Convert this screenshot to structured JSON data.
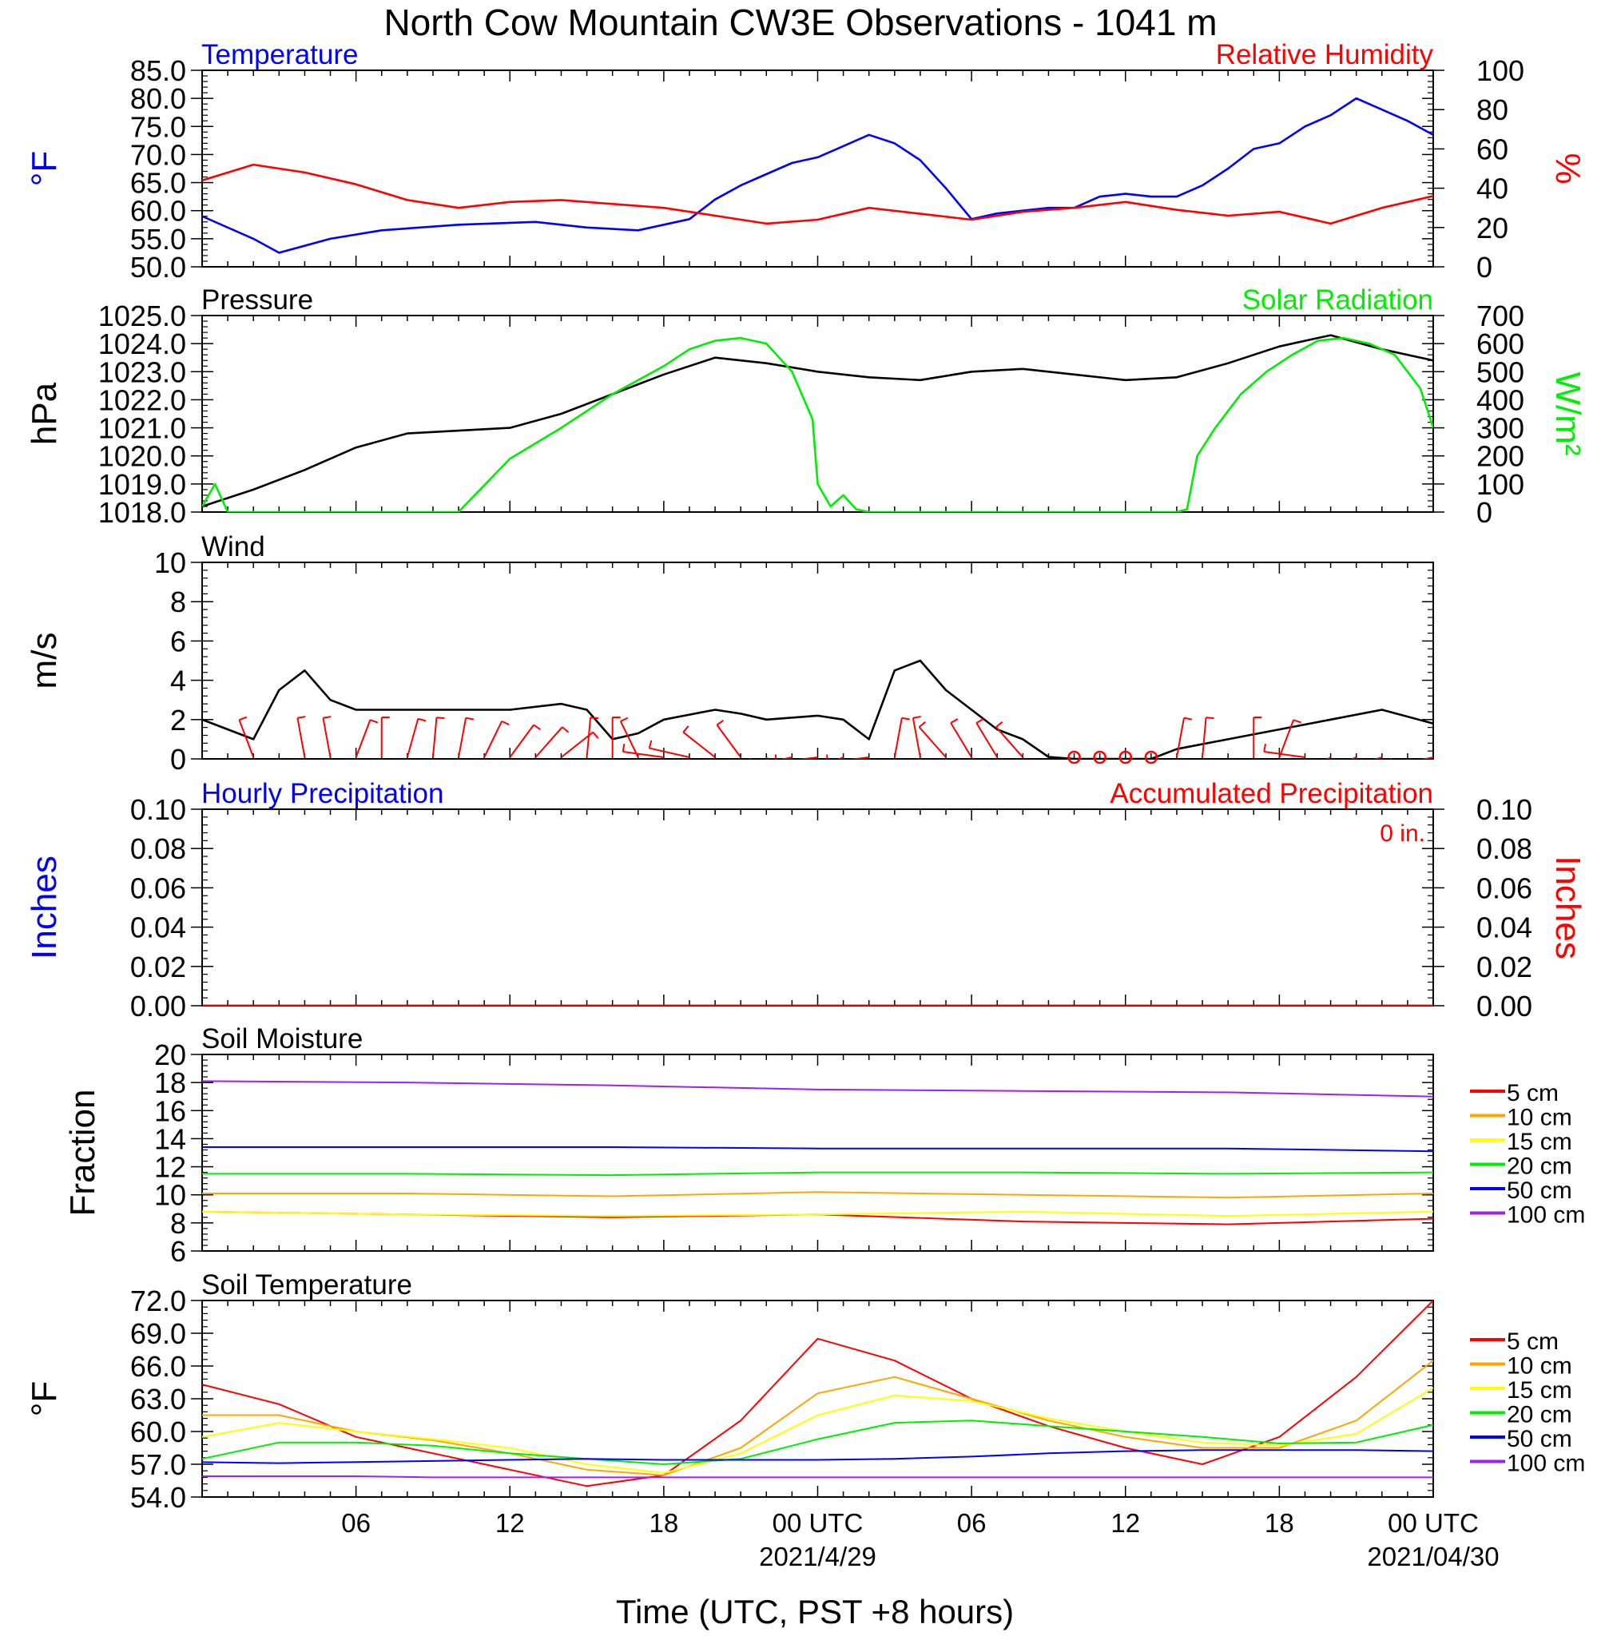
{
  "title": "North Cow Mountain CW3E Observations - 1041 m",
  "xaxis": {
    "label": "Time (UTC, PST +8 hours)",
    "range_hours": [
      -24,
      24
    ],
    "ticks": [
      {
        "h": -18,
        "label": "06"
      },
      {
        "h": -12,
        "label": "12"
      },
      {
        "h": -6,
        "label": "18"
      },
      {
        "h": 0,
        "label": "00 UTC"
      },
      {
        "h": 6,
        "label": "06"
      },
      {
        "h": 12,
        "label": "12"
      },
      {
        "h": 18,
        "label": "18"
      },
      {
        "h": 24,
        "label": "00 UTC"
      }
    ],
    "date_labels": [
      {
        "h": 0,
        "label": "2021/4/29"
      },
      {
        "h": 24,
        "label": "2021/04/30"
      }
    ]
  },
  "colors": {
    "temperature": "#0000ff",
    "humidity": "#ff0000",
    "pressure": "#000000",
    "solar": "#00ee00",
    "wind": "#000000",
    "barbs": "#ff0000",
    "hourly_precip": "#0000ff",
    "accum_precip": "#ff0000"
  },
  "depth_legend": {
    "labels": [
      "5 cm",
      "10 cm",
      "15 cm",
      "20 cm",
      "50 cm",
      "100 cm"
    ],
    "colors": [
      "#ff0000",
      "#ffa500",
      "#ffff00",
      "#00ee00",
      "#0000ff",
      "#a020f0"
    ]
  },
  "chart_data": [
    {
      "type": "line",
      "panel": "temperature-humidity",
      "left_title": "Temperature",
      "right_title": "Relative Humidity",
      "ylabel_left": "°F",
      "ylabel_right": "%",
      "yticks_left": [
        "50.0",
        "55.0",
        "60.0",
        "65.0",
        "70.0",
        "75.0",
        "80.0",
        "85.0"
      ],
      "yticks_right": [
        "0",
        "20",
        "40",
        "60",
        "80",
        "100"
      ],
      "ylim_left": [
        50,
        85
      ],
      "ylim_right": [
        0,
        100
      ],
      "series": [
        {
          "axis": "left",
          "x": [
            -24,
            -22,
            -21,
            -19,
            -17,
            -14,
            -11,
            -9,
            -7,
            -5,
            -4,
            -3,
            -2,
            -1,
            0,
            1,
            2,
            3,
            4,
            5,
            6,
            7,
            8,
            9,
            10,
            11,
            12,
            13,
            14,
            15,
            16,
            17,
            18,
            19,
            20,
            21,
            22,
            23,
            24
          ],
          "y": [
            59.0,
            55.0,
            52.5,
            55.0,
            56.5,
            57.5,
            58.0,
            57.0,
            56.5,
            58.5,
            62.0,
            64.5,
            66.5,
            68.5,
            69.5,
            71.5,
            73.5,
            72.0,
            69.0,
            64.0,
            58.5,
            59.5,
            60.0,
            60.5,
            60.5,
            62.5,
            63.0,
            62.5,
            62.5,
            64.5,
            67.5,
            71.0,
            72.0,
            75.0,
            77.0,
            80.0,
            78.0,
            76.0,
            73.5
          ]
        },
        {
          "axis": "right",
          "x": [
            -24,
            -22,
            -20,
            -18,
            -16,
            -14,
            -12,
            -10,
            -8,
            -6,
            -4,
            -2,
            0,
            2,
            4,
            6,
            8,
            10,
            12,
            14,
            16,
            18,
            20,
            22,
            24
          ],
          "y": [
            44,
            52,
            48,
            42,
            34,
            30,
            33,
            34,
            32,
            30,
            26,
            22,
            24,
            30,
            27,
            24,
            28,
            30,
            33,
            29,
            26,
            28,
            22,
            30,
            36
          ]
        }
      ]
    },
    {
      "type": "line",
      "panel": "pressure-solar",
      "left_title": "Pressure",
      "right_title": "Solar Radiation",
      "ylabel_left": "hPa",
      "ylabel_right": "W/m²",
      "yticks_left": [
        "1018.0",
        "1019.0",
        "1020.0",
        "1021.0",
        "1022.0",
        "1023.0",
        "1024.0",
        "1025.0"
      ],
      "yticks_right": [
        "0",
        "100",
        "200",
        "300",
        "400",
        "500",
        "600",
        "700"
      ],
      "ylim_left": [
        1018,
        1025
      ],
      "ylim_right": [
        0,
        700
      ],
      "series": [
        {
          "axis": "left",
          "x": [
            -24,
            -22,
            -20,
            -18,
            -16,
            -14,
            -12,
            -10,
            -8,
            -6,
            -4,
            -2,
            0,
            2,
            4,
            6,
            8,
            10,
            12,
            14,
            16,
            18,
            20,
            22,
            24
          ],
          "y": [
            1018.2,
            1018.8,
            1019.5,
            1020.3,
            1020.8,
            1020.9,
            1021.0,
            1021.5,
            1022.2,
            1022.9,
            1023.5,
            1023.3,
            1023.0,
            1022.8,
            1022.7,
            1023.0,
            1023.1,
            1022.9,
            1022.7,
            1022.8,
            1023.3,
            1023.9,
            1024.3,
            1023.8,
            1023.4
          ]
        },
        {
          "axis": "right",
          "x": [
            -24,
            -23.5,
            -23,
            -22,
            -14,
            -13.8,
            -12,
            -10,
            -8,
            -6,
            -5,
            -4,
            -3,
            -2,
            -1,
            -0.2,
            0,
            0.5,
            1,
            1.5,
            2,
            6,
            14,
            14.4,
            14.8,
            15.5,
            16.5,
            17.5,
            18.5,
            19.5,
            20.5,
            21.5,
            22.5,
            23.5,
            24
          ],
          "y": [
            20,
            100,
            0,
            0,
            0,
            20,
            190,
            300,
            420,
            520,
            580,
            610,
            620,
            600,
            500,
            330,
            100,
            20,
            60,
            10,
            0,
            0,
            0,
            10,
            200,
            300,
            420,
            500,
            560,
            610,
            620,
            600,
            560,
            440,
            300
          ]
        }
      ]
    },
    {
      "type": "line",
      "panel": "wind",
      "left_title": "Wind",
      "ylabel_left": "m/s",
      "yticks_left": [
        "0",
        "2",
        "4",
        "6",
        "8",
        "10"
      ],
      "ylim_left": [
        0,
        10
      ],
      "series": [
        {
          "axis": "left",
          "x": [
            -24,
            -22,
            -21,
            -20,
            -19,
            -18,
            -16,
            -14,
            -12,
            -10,
            -9,
            -8,
            -7,
            -6,
            -4,
            -3,
            -2,
            0,
            1,
            2,
            3,
            4,
            5,
            6,
            7,
            8,
            9,
            10,
            11,
            12,
            13,
            14,
            16,
            18,
            20,
            22,
            24
          ],
          "y": [
            2.0,
            1.0,
            3.5,
            4.5,
            3.0,
            2.5,
            2.5,
            2.5,
            2.5,
            2.8,
            2.5,
            1.0,
            1.3,
            2.0,
            2.5,
            2.3,
            2.0,
            2.2,
            2.0,
            1.0,
            4.5,
            5.0,
            3.5,
            2.5,
            1.5,
            1.0,
            0.1,
            0.0,
            0.0,
            0.0,
            0.0,
            0.5,
            1.0,
            1.5,
            2.0,
            2.5,
            1.8
          ]
        }
      ],
      "barbs": [
        {
          "h": -22,
          "dir": 340
        },
        {
          "h": -20,
          "dir": 350
        },
        {
          "h": -19,
          "dir": 350
        },
        {
          "h": -18,
          "dir": 20
        },
        {
          "h": -17,
          "dir": 0
        },
        {
          "h": -16,
          "dir": 15
        },
        {
          "h": -15,
          "dir": 5
        },
        {
          "h": -14,
          "dir": 10
        },
        {
          "h": -13,
          "dir": 25
        },
        {
          "h": -12,
          "dir": 35
        },
        {
          "h": -11,
          "dir": 40
        },
        {
          "h": -10,
          "dir": 50
        },
        {
          "h": -9,
          "dir": 5
        },
        {
          "h": -8,
          "dir": 0
        },
        {
          "h": -7,
          "dir": 335
        },
        {
          "h": -6,
          "dir": 280
        },
        {
          "h": -5,
          "dir": 285
        },
        {
          "h": -4,
          "dir": 310
        },
        {
          "h": -3,
          "dir": 325
        },
        {
          "h": -2,
          "dir": 145
        },
        {
          "h": -1,
          "dir": 260
        },
        {
          "h": 0,
          "dir": 265
        },
        {
          "h": 1,
          "dir": 250
        },
        {
          "h": 2,
          "dir": 265
        },
        {
          "h": 3,
          "dir": 10
        },
        {
          "h": 4,
          "dir": 350
        },
        {
          "h": 5,
          "dir": 320
        },
        {
          "h": 6,
          "dir": 330
        },
        {
          "h": 7,
          "dir": 330
        },
        {
          "h": 8,
          "dir": 320
        },
        {
          "h": 14,
          "dir": 10
        },
        {
          "h": 15,
          "dir": 5
        },
        {
          "h": 17,
          "dir": 0
        },
        {
          "h": 18,
          "dir": 20
        },
        {
          "h": 19,
          "dir": 280
        },
        {
          "h": 20,
          "dir": 240
        },
        {
          "h": 21,
          "dir": 250
        },
        {
          "h": 22,
          "dir": 255
        },
        {
          "h": 24,
          "dir": 260
        }
      ],
      "calm_hours": [
        10,
        11,
        12,
        13
      ]
    },
    {
      "type": "line",
      "panel": "precipitation",
      "left_title": "Hourly Precipitation",
      "right_title": "Accumulated Precipitation",
      "annotation": "0 in.",
      "ylabel_left": "Inches",
      "ylabel_right": "Inches",
      "yticks_left": [
        "0.00",
        "0.02",
        "0.04",
        "0.06",
        "0.08",
        "0.10"
      ],
      "yticks_right": [
        "0.00",
        "0.02",
        "0.04",
        "0.06",
        "0.08",
        "0.10"
      ],
      "ylim_left": [
        0,
        0.1
      ],
      "ylim_right": [
        0,
        0.1
      ],
      "series": [
        {
          "axis": "left",
          "x": [
            -24,
            24
          ],
          "y": [
            0,
            0
          ]
        },
        {
          "axis": "right",
          "x": [
            -24,
            24
          ],
          "y": [
            0,
            0
          ]
        }
      ]
    },
    {
      "type": "line",
      "panel": "soil-moisture",
      "left_title": "Soil Moisture",
      "ylabel_left": "Fraction",
      "yticks_left": [
        "6",
        "8",
        "10",
        "12",
        "14",
        "16",
        "18",
        "20"
      ],
      "ylim_left": [
        6,
        20
      ],
      "x": [
        -24,
        -16,
        -8,
        0,
        8,
        16,
        24
      ],
      "series": [
        {
          "name": "5 cm",
          "axis": "left",
          "y": [
            8.8,
            8.6,
            8.4,
            8.6,
            8.1,
            7.9,
            8.3
          ]
        },
        {
          "name": "10 cm",
          "axis": "left",
          "y": [
            10.1,
            10.1,
            9.9,
            10.2,
            10.0,
            9.8,
            10.1
          ]
        },
        {
          "name": "15 cm",
          "axis": "left",
          "y": [
            8.8,
            8.6,
            8.5,
            8.6,
            8.8,
            8.5,
            8.8
          ]
        },
        {
          "name": "20 cm",
          "axis": "left",
          "y": [
            11.5,
            11.5,
            11.4,
            11.6,
            11.6,
            11.5,
            11.6
          ]
        },
        {
          "name": "50 cm",
          "axis": "left",
          "y": [
            13.4,
            13.4,
            13.4,
            13.3,
            13.3,
            13.3,
            13.1
          ]
        },
        {
          "name": "100 cm",
          "axis": "left",
          "y": [
            18.1,
            18.0,
            17.8,
            17.5,
            17.4,
            17.3,
            17.0
          ]
        }
      ]
    },
    {
      "type": "line",
      "panel": "soil-temperature",
      "left_title": "Soil Temperature",
      "ylabel_left": "°F",
      "yticks_left": [
        "54.0",
        "57.0",
        "60.0",
        "63.0",
        "66.0",
        "69.0",
        "72.0"
      ],
      "ylim_left": [
        54,
        72
      ],
      "x": [
        -24,
        -21,
        -18,
        -15,
        -12,
        -9,
        -6,
        -3,
        0,
        3,
        6,
        9,
        12,
        15,
        18,
        21,
        24
      ],
      "series": [
        {
          "name": "5 cm",
          "axis": "left",
          "y": [
            64.3,
            62.5,
            59.5,
            58.0,
            56.5,
            55.0,
            56.0,
            61.0,
            68.5,
            66.5,
            63.0,
            60.5,
            58.5,
            57.0,
            59.5,
            65.0,
            72.0
          ]
        },
        {
          "name": "10 cm",
          "axis": "left",
          "y": [
            61.5,
            61.5,
            60.0,
            59.2,
            58.0,
            56.5,
            56.0,
            58.5,
            63.5,
            65.0,
            63.0,
            61.0,
            59.5,
            58.5,
            58.5,
            61.0,
            66.5
          ]
        },
        {
          "name": "15 cm",
          "axis": "left",
          "y": [
            59.5,
            60.8,
            60.0,
            59.3,
            58.5,
            57.0,
            56.2,
            58.0,
            61.5,
            63.3,
            62.8,
            61.2,
            60.0,
            59.0,
            58.7,
            59.8,
            64.0
          ]
        },
        {
          "name": "20 cm",
          "axis": "left",
          "y": [
            57.5,
            59.0,
            59.0,
            58.7,
            58.0,
            57.5,
            57.0,
            57.5,
            59.3,
            60.8,
            61.0,
            60.5,
            60.0,
            59.5,
            58.9,
            59.0,
            60.6
          ]
        },
        {
          "name": "50 cm",
          "axis": "left",
          "y": [
            57.2,
            57.1,
            57.2,
            57.3,
            57.4,
            57.5,
            57.4,
            57.4,
            57.4,
            57.5,
            57.7,
            58.0,
            58.2,
            58.3,
            58.3,
            58.3,
            58.2
          ]
        },
        {
          "name": "100 cm",
          "axis": "left",
          "y": [
            55.9,
            55.9,
            55.9,
            55.8,
            55.8,
            55.8,
            55.8,
            55.8,
            55.8,
            55.8,
            55.8,
            55.8,
            55.8,
            55.8,
            55.8,
            55.8,
            55.8
          ]
        }
      ]
    }
  ]
}
